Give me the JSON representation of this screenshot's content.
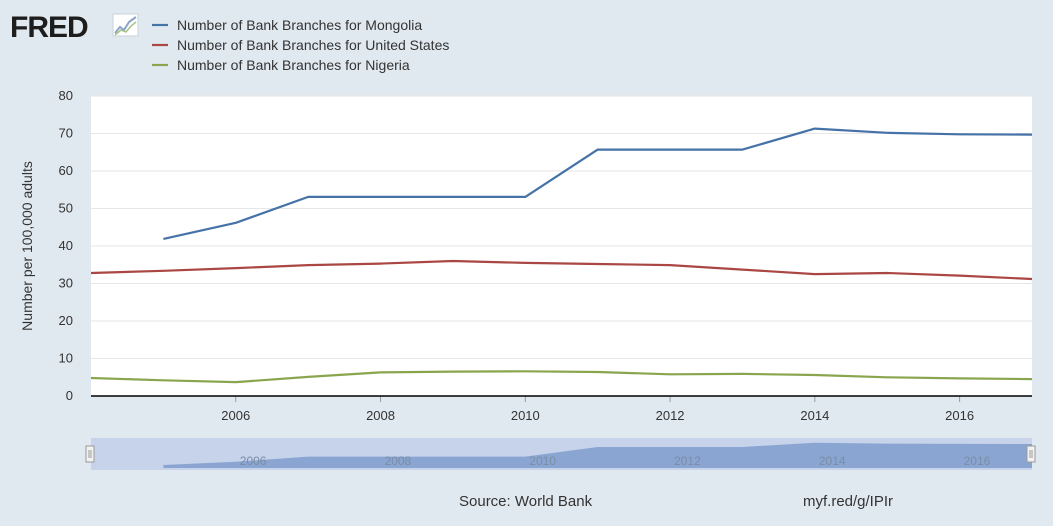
{
  "header": {
    "logo_text": "FRED",
    "logo_icon": "chart-line-icon"
  },
  "colors": {
    "background": "#e1e9f0",
    "plot_background": "#ffffff",
    "mongolia": "#4572a7",
    "united_states": "#aa4643",
    "nigeria": "#89a54e",
    "navigator_fill": "#7f9ccc",
    "navigator_band": "#c6d3ea"
  },
  "chart_data": {
    "type": "line",
    "title": "",
    "xlabel": "",
    "ylabel": "Number per 100,000 adults",
    "xlim": [
      2004,
      2017
    ],
    "ylim": [
      0,
      80
    ],
    "x_ticks": [
      2006,
      2008,
      2010,
      2012,
      2014,
      2016
    ],
    "y_ticks": [
      0,
      10,
      20,
      30,
      40,
      50,
      60,
      70,
      80
    ],
    "grid": true,
    "legend_position": "top-left",
    "series": [
      {
        "name": "Number of Bank Branches for Mongolia",
        "color": "#4572a7",
        "x": [
          2005,
          2006,
          2007,
          2008,
          2009,
          2010,
          2011,
          2012,
          2013,
          2014,
          2015,
          2016,
          2017
        ],
        "values": [
          41.9,
          46.2,
          53.1,
          53.1,
          53.1,
          53.1,
          65.7,
          65.7,
          65.7,
          71.3,
          70.2,
          69.8,
          69.7
        ]
      },
      {
        "name": "Number of Bank Branches for United States",
        "color": "#aa4643",
        "x": [
          2004,
          2005,
          2006,
          2007,
          2008,
          2009,
          2010,
          2011,
          2012,
          2013,
          2014,
          2015,
          2016,
          2017
        ],
        "values": [
          32.8,
          33.4,
          34.1,
          34.9,
          35.3,
          36.0,
          35.5,
          35.2,
          34.9,
          33.7,
          32.5,
          32.8,
          32.1,
          31.2
        ]
      },
      {
        "name": "Number of Bank Branches for Nigeria",
        "color": "#89a54e",
        "x": [
          2004,
          2005,
          2006,
          2007,
          2008,
          2009,
          2010,
          2011,
          2012,
          2013,
          2014,
          2015,
          2016,
          2017
        ],
        "values": [
          4.8,
          4.2,
          3.7,
          5.1,
          6.3,
          6.5,
          6.6,
          6.4,
          5.8,
          5.9,
          5.6,
          5.0,
          4.7,
          4.5
        ]
      }
    ]
  },
  "navigator": {
    "tick_labels": [
      "2006",
      "2008",
      "2010",
      "2012",
      "2014",
      "2016"
    ],
    "left_handle_icon": "drag-handle-icon",
    "right_handle_icon": "drag-handle-icon"
  },
  "footer": {
    "source": "Source: World Bank",
    "short_url": "myf.red/g/IPIr"
  }
}
